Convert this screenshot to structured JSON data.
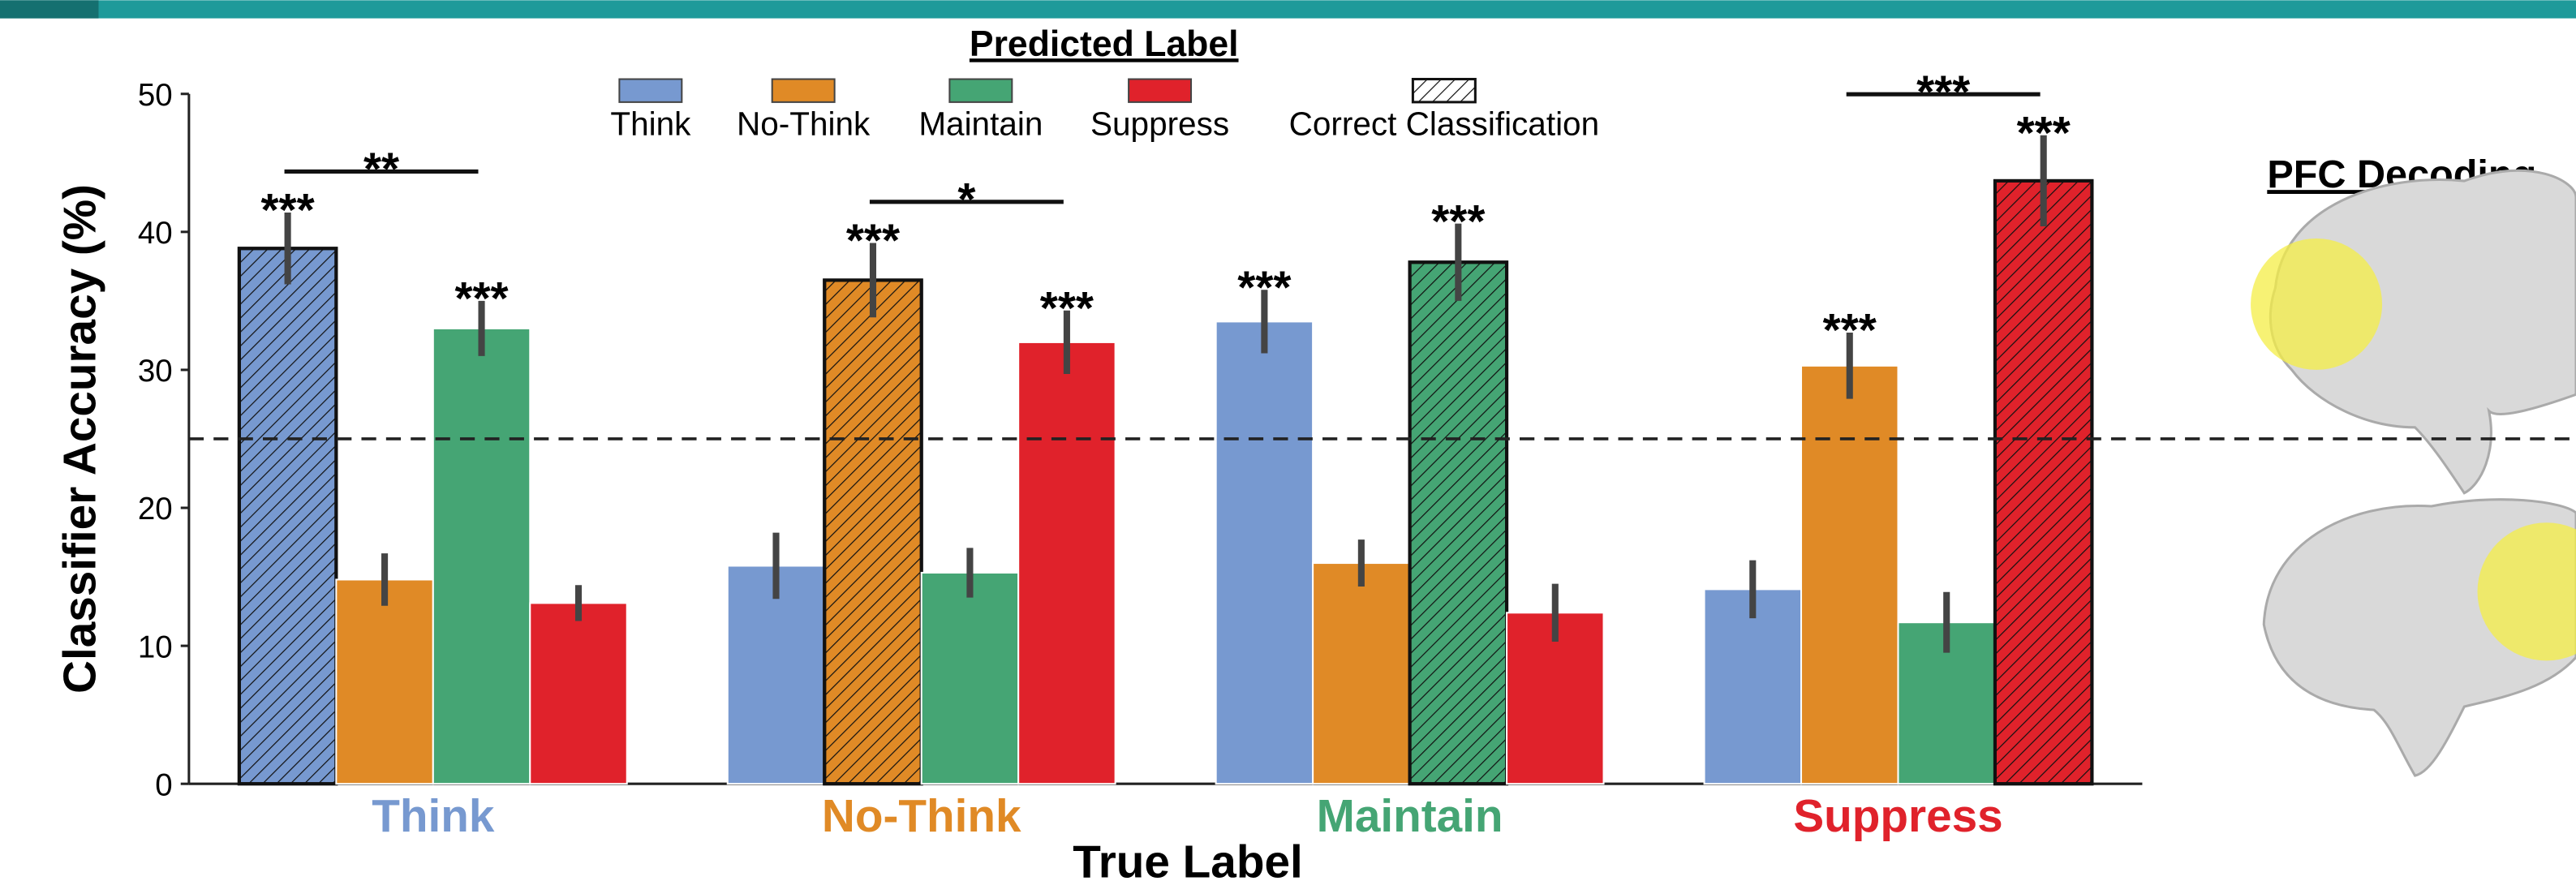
{
  "side_panel": {
    "title": "PFC Decoding"
  },
  "chart_data": {
    "type": "bar",
    "title": "Predicted Label",
    "x_label": "True Label",
    "y_label": "Classifier Accuracy (%)",
    "categories": [
      "Think",
      "No-Think",
      "Maintain",
      "Suppress"
    ],
    "series": [
      {
        "name": "Think",
        "color": "#7799d0",
        "values": [
          38.8,
          15.8,
          33.5,
          14.1
        ],
        "errors": [
          2.6,
          2.4,
          2.3,
          2.1
        ]
      },
      {
        "name": "No-Think",
        "color": "#e08a26",
        "values": [
          14.8,
          36.5,
          16.0,
          30.3
        ],
        "errors": [
          1.9,
          2.7,
          1.7,
          2.4
        ]
      },
      {
        "name": "Maintain",
        "color": "#45a574",
        "values": [
          33.0,
          15.3,
          37.8,
          11.7
        ],
        "errors": [
          2.0,
          1.8,
          2.8,
          2.2
        ]
      },
      {
        "name": "Suppress",
        "color": "#e0222b",
        "values": [
          13.1,
          32.0,
          12.4,
          43.7
        ],
        "errors": [
          1.3,
          2.3,
          2.1,
          3.3
        ]
      }
    ],
    "hatched_label": "Correct Classification",
    "hatched_series": [
      0,
      1,
      2,
      3
    ],
    "ylim": [
      0,
      50
    ],
    "yticks": [
      0,
      10,
      20,
      30,
      40,
      50
    ],
    "reference_line": 25,
    "annotations": [
      {
        "text": "***",
        "category": 0,
        "series": 0
      },
      {
        "text": "***",
        "category": 0,
        "series": 2
      },
      {
        "text": "***",
        "category": 1,
        "series": 1
      },
      {
        "text": "***",
        "category": 1,
        "series": 3
      },
      {
        "text": "***",
        "category": 2,
        "series": 0
      },
      {
        "text": "***",
        "category": 2,
        "series": 2
      },
      {
        "text": "***",
        "category": 3,
        "series": 1
      },
      {
        "text": "***",
        "category": 3,
        "series": 3
      }
    ],
    "brackets": [
      {
        "text": "**",
        "category": 0,
        "from": 0,
        "to": 2
      },
      {
        "text": "*",
        "category": 1,
        "from": 1,
        "to": 3
      },
      {
        "text": "***",
        "category": 3,
        "from": 1,
        "to": 3
      }
    ]
  }
}
